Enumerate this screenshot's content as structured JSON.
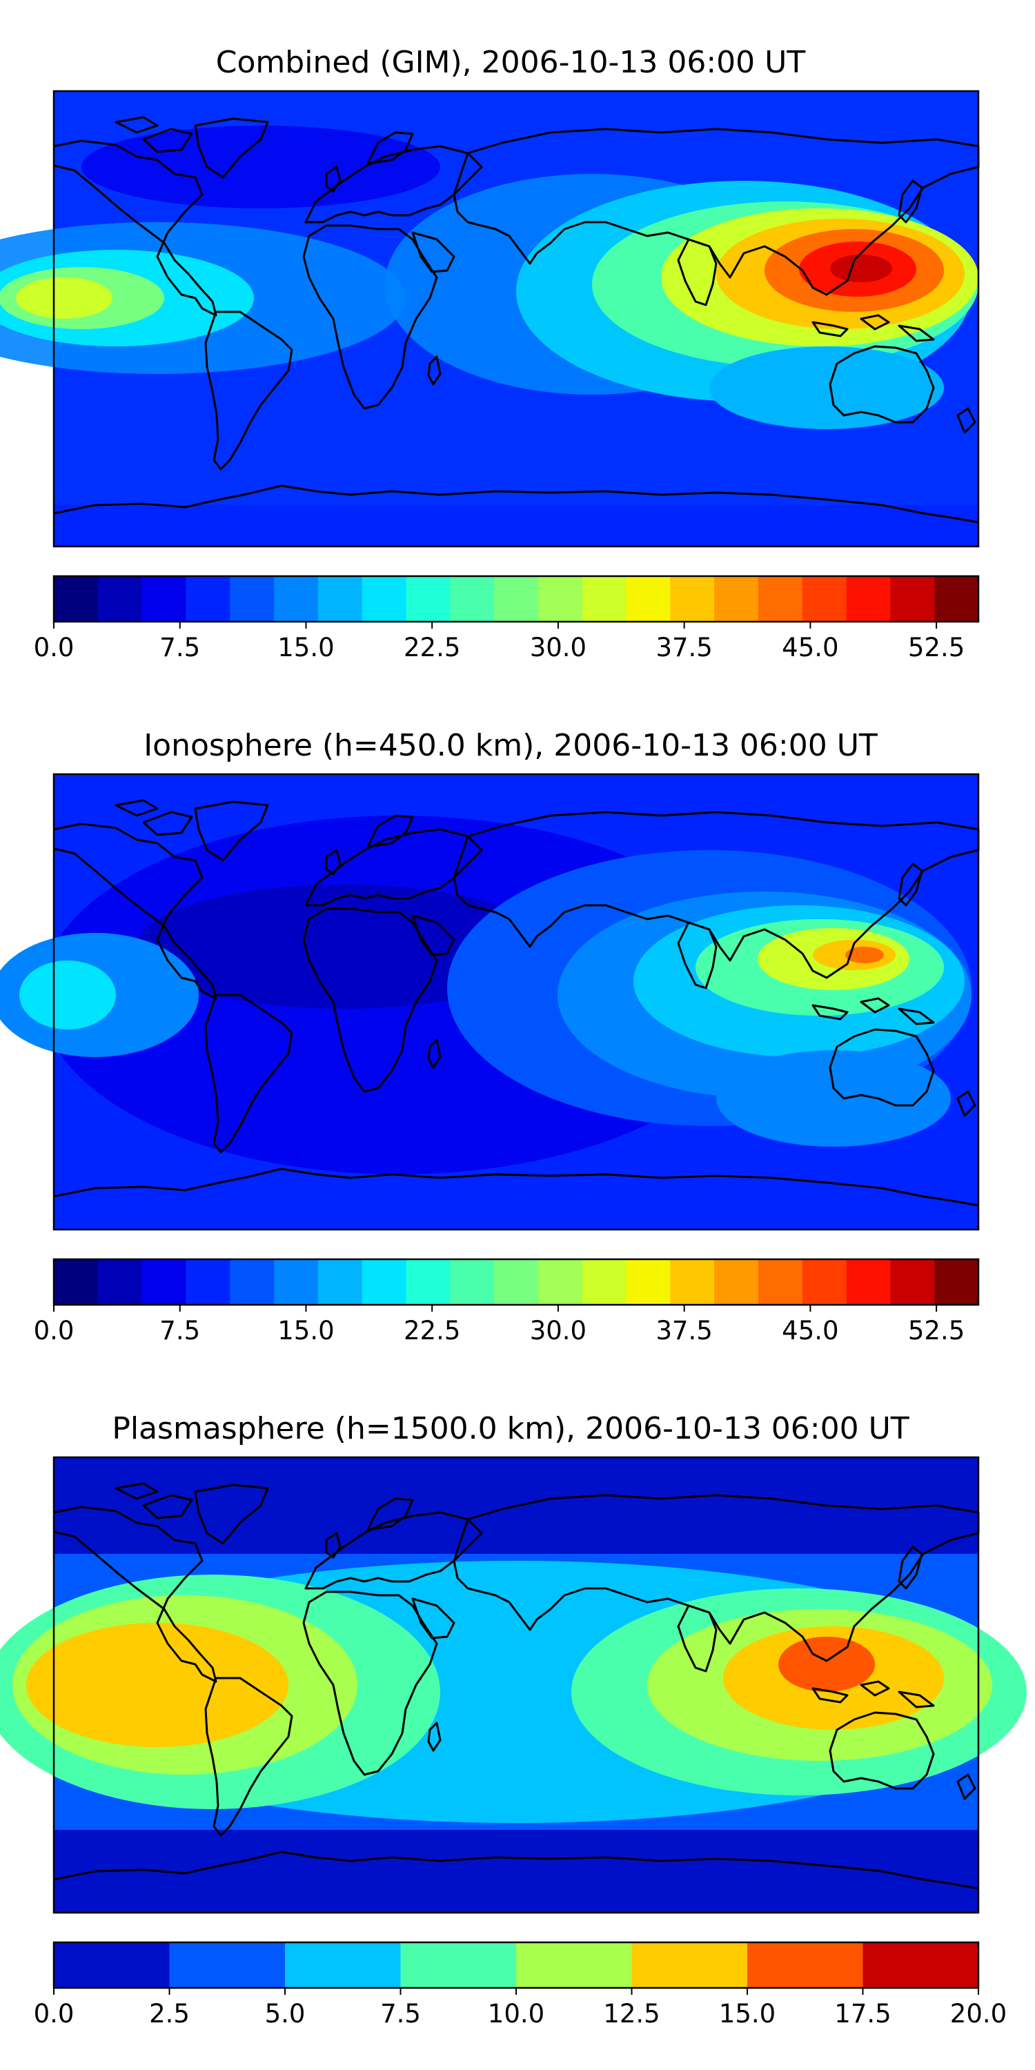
{
  "panels": [
    {
      "title": "Combined (GIM), 2006-10-13 06:00 UT",
      "colorbar": {
        "min": 0,
        "max": 55,
        "step": 2.5,
        "tick_labels": [
          "0.0",
          "7.5",
          "15.0",
          "22.5",
          "30.0",
          "37.5",
          "45.0",
          "52.5"
        ],
        "colors": [
          "#00007f",
          "#0000b6",
          "#0000ed",
          "#0024ff",
          "#0054ff",
          "#0084ff",
          "#00b4ff",
          "#00e4ff",
          "#1fffd7",
          "#4affac",
          "#76ff80",
          "#a1ff55",
          "#cdff29",
          "#f8f500",
          "#ffc700",
          "#ff9a00",
          "#ff6c00",
          "#ff3e00",
          "#ff1100",
          "#c80000",
          "#7f0000"
        ]
      }
    },
    {
      "title": "Ionosphere  (h=450.0 km), 2006-10-13 06:00 UT",
      "colorbar": {
        "min": 0,
        "max": 55,
        "step": 2.5,
        "tick_labels": [
          "0.0",
          "7.5",
          "15.0",
          "22.5",
          "30.0",
          "37.5",
          "45.0",
          "52.5"
        ],
        "colors": [
          "#00007f",
          "#0000b6",
          "#0000ed",
          "#0024ff",
          "#0054ff",
          "#0084ff",
          "#00b4ff",
          "#00e4ff",
          "#1fffd7",
          "#4affac",
          "#76ff80",
          "#a1ff55",
          "#cdff29",
          "#f8f500",
          "#ffc700",
          "#ff9a00",
          "#ff6c00",
          "#ff3e00",
          "#ff1100",
          "#c80000",
          "#7f0000"
        ]
      }
    },
    {
      "title": "Plasmasphere (h=1500.0 km), 2006-10-13 06:00 UT",
      "colorbar": {
        "min": 0,
        "max": 20,
        "step": 2.5,
        "tick_labels": [
          "0.0",
          "2.5",
          "5.0",
          "7.5",
          "10.0",
          "12.5",
          "15.0",
          "17.5",
          "20.0"
        ],
        "colors": [
          "#0010c8",
          "#0058ff",
          "#00c4ff",
          "#4affac",
          "#a8ff4d",
          "#ffcc00",
          "#ff5500",
          "#c80000"
        ]
      }
    }
  ]
}
